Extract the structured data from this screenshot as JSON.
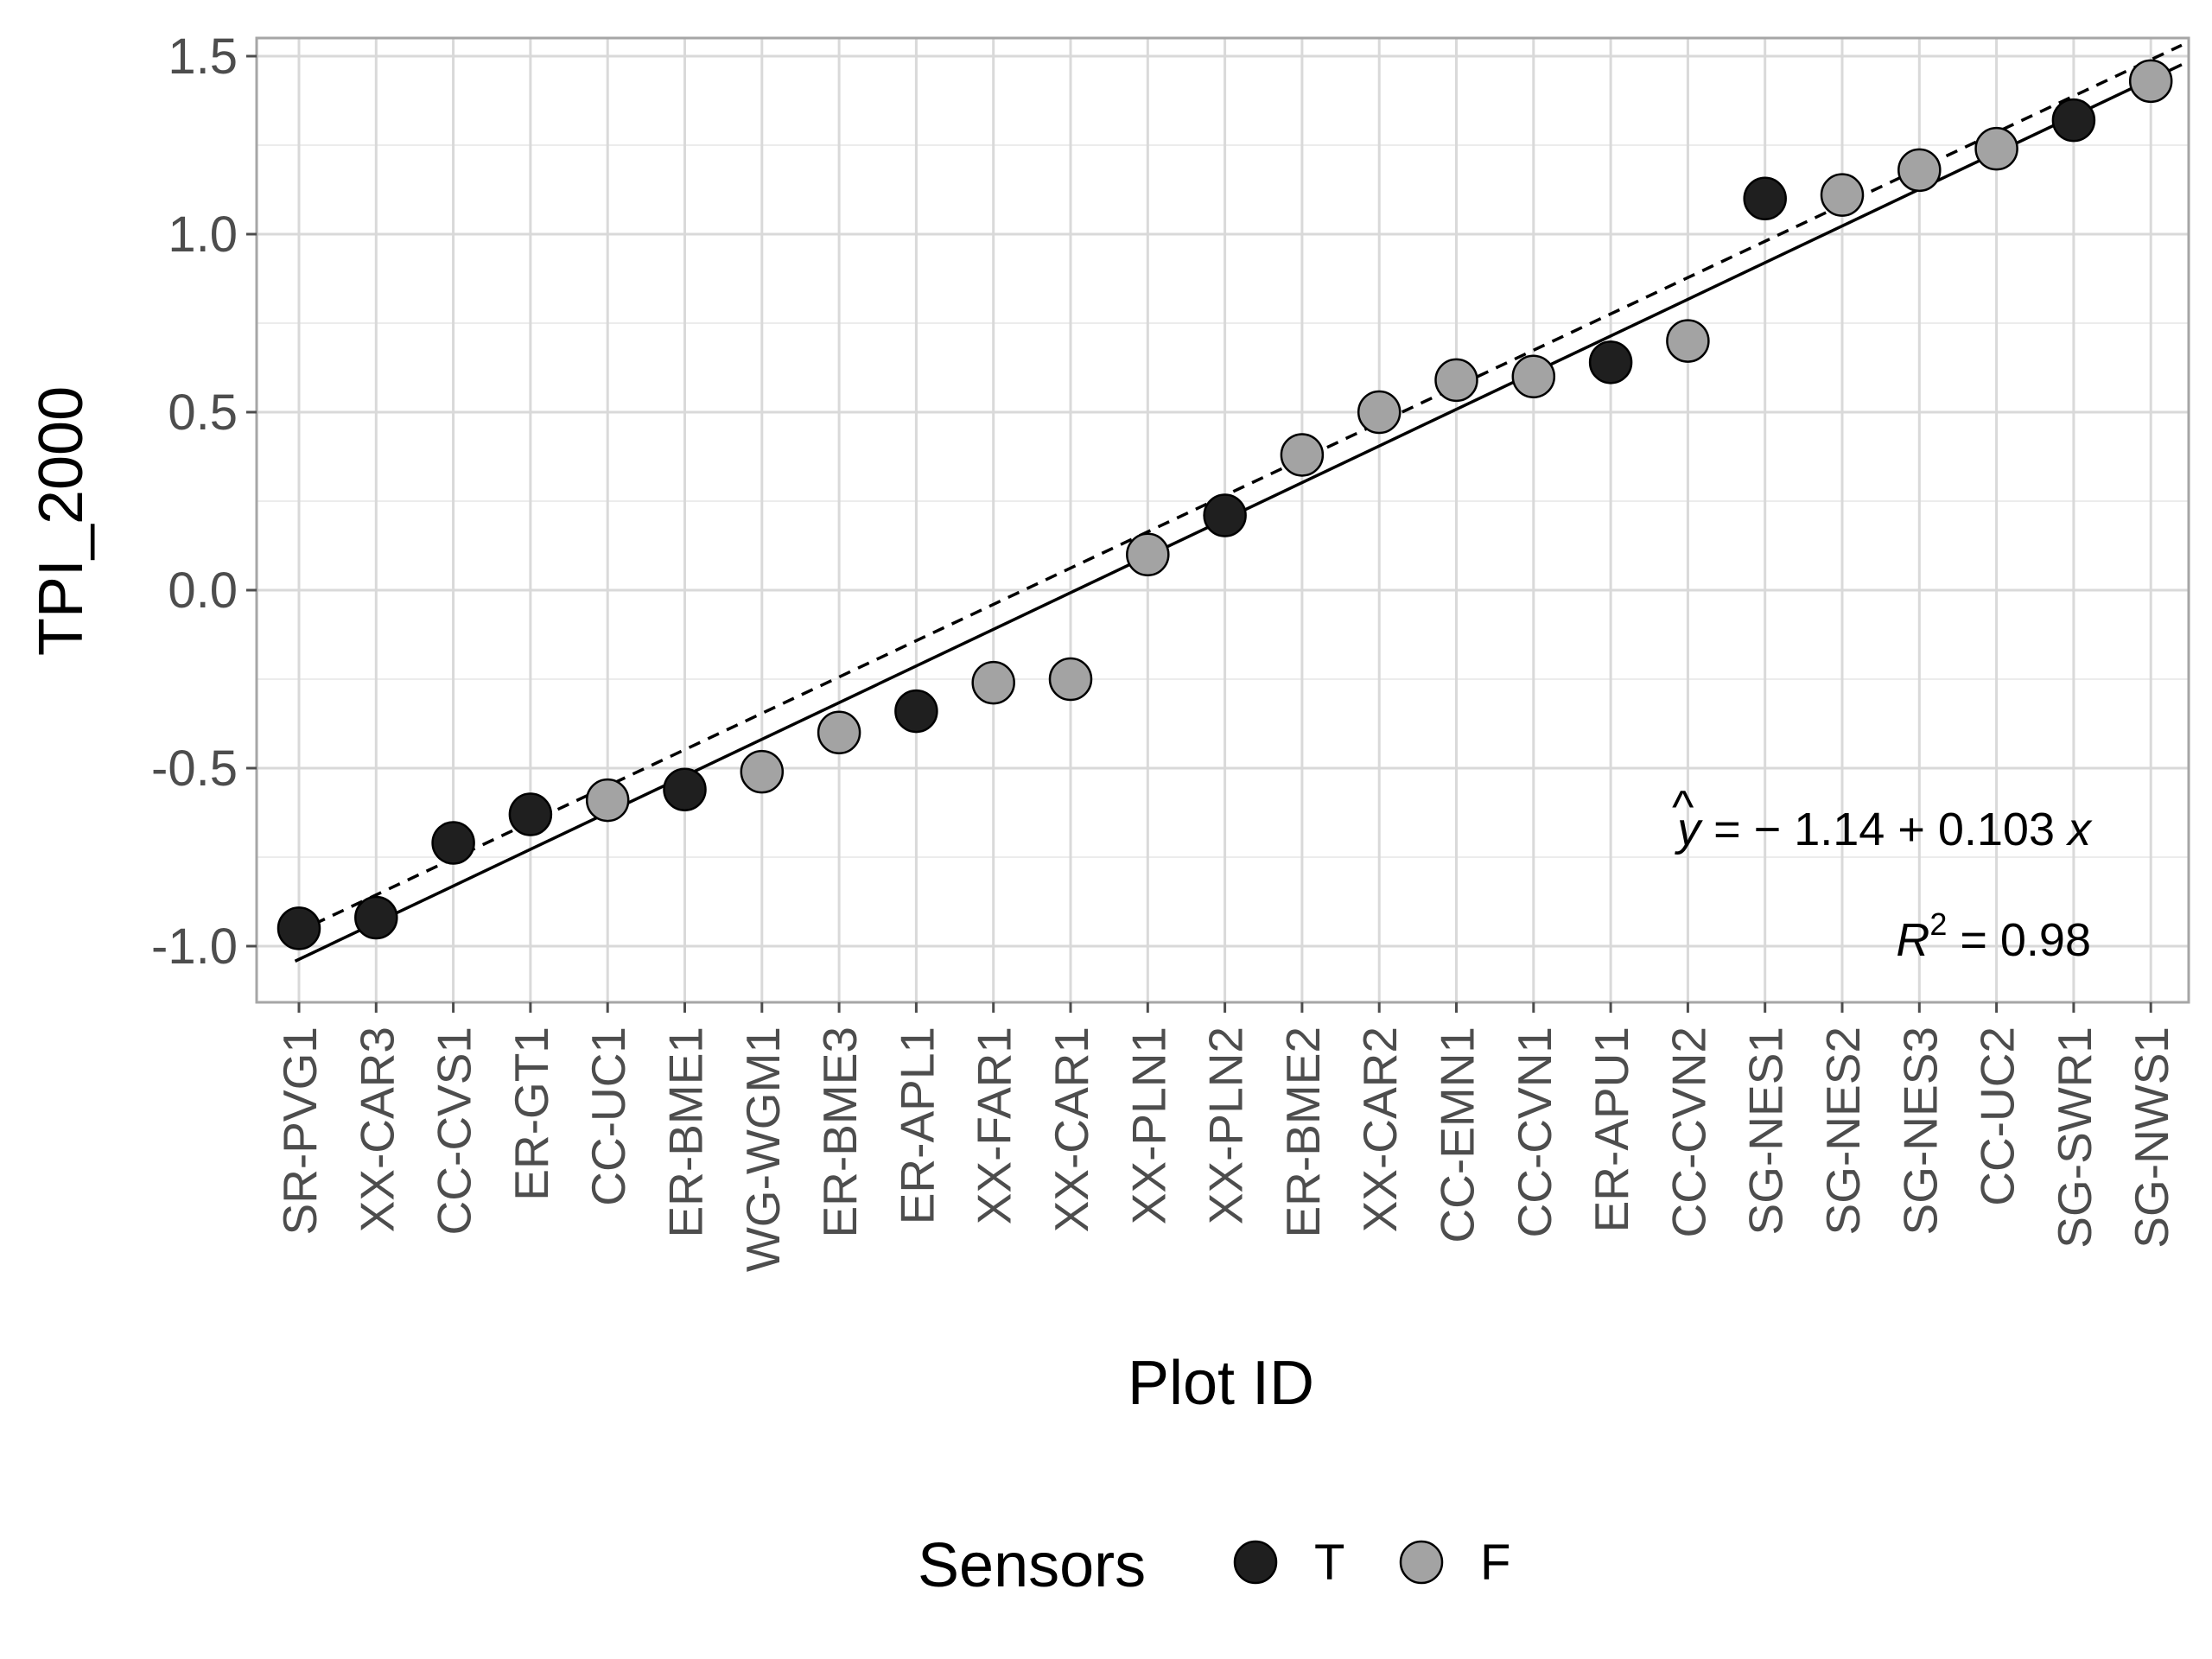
{
  "chart_data": {
    "type": "scatter",
    "xlabel": "Plot ID",
    "ylabel": "TPI_2000",
    "ylim": [
      -1.15,
      1.55
    ],
    "yticks": [
      "1.5",
      "1.0",
      "0.5",
      "0.0",
      "-0.5",
      "-1.0"
    ],
    "ytick_values": [
      1.5,
      1.0,
      0.5,
      0.0,
      -0.5,
      -1.0
    ],
    "grid": true,
    "categories": [
      "SR-PVG1",
      "XX-CAR3",
      "CC-CVS1",
      "ER-GT1",
      "CC-UC1",
      "ER-BME1",
      "WG-WGM1",
      "ER-BME3",
      "ER-APL1",
      "XX-FAR1",
      "XX-CAR1",
      "XX-PLN1",
      "XX-PLN2",
      "ER-BME2",
      "XX-CAR2",
      "CC-EMN1",
      "CC-CVN1",
      "ER-APU1",
      "CC-CVN2",
      "SG-NES1",
      "SG-NES2",
      "SG-NES3",
      "CC-UC2",
      "SG-SWR1",
      "SG-NWS1"
    ],
    "values": [
      -0.95,
      -0.92,
      -0.71,
      -0.63,
      -0.59,
      -0.56,
      -0.51,
      -0.4,
      -0.34,
      -0.26,
      -0.25,
      0.1,
      0.21,
      0.38,
      0.5,
      0.59,
      0.6,
      0.64,
      0.7,
      1.1,
      1.11,
      1.18,
      1.24,
      1.32,
      1.43
    ],
    "sensors": [
      "T",
      "T",
      "T",
      "T",
      "F",
      "T",
      "F",
      "F",
      "T",
      "F",
      "F",
      "F",
      "T",
      "F",
      "F",
      "F",
      "F",
      "T",
      "F",
      "T",
      "F",
      "F",
      "F",
      "T",
      "F"
    ],
    "fit_line": {
      "intercept": -1.14,
      "slope": 0.103,
      "style": "solid"
    },
    "reference_line": {
      "intercept": -1.06,
      "slope": 0.102,
      "style": "dashed"
    },
    "equation": "ŷ = − 1.14 + 0.103 x",
    "r_squared": "0.98",
    "legend": {
      "title": "Sensors",
      "placement": "bottom",
      "entries": [
        {
          "label": "T",
          "color": "#1f1f1f"
        },
        {
          "label": "F",
          "color": "#a3a3a3"
        }
      ]
    }
  }
}
